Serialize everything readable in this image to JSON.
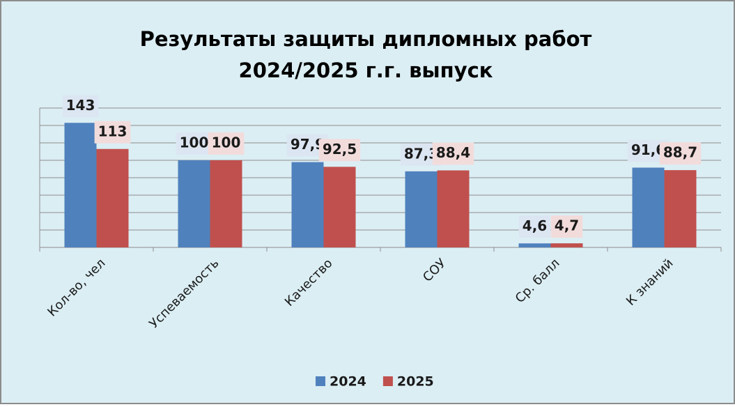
{
  "chart_data": {
    "type": "bar",
    "title": "Результаты защиты дипломных работ",
    "subtitle": "2024/2025 г.г. выпуск",
    "categories": [
      "Кол-во, чел",
      "Успеваемость",
      "Качество",
      "СОУ",
      "Ср. балл",
      "К знаний"
    ],
    "series": [
      {
        "name": "2024",
        "color": "#4f81bd",
        "values": [
          143,
          100,
          97.9,
          87.3,
          4.6,
          91.6
        ],
        "value_labels": [
          "143",
          "100",
          "97,9",
          "87,3",
          "4,6",
          "91,6"
        ]
      },
      {
        "name": "2025",
        "color": "#c0504d",
        "values": [
          113,
          100,
          92.5,
          88.4,
          4.7,
          88.7
        ],
        "value_labels": [
          "113",
          "100",
          "92,5",
          "88,4",
          "4,7",
          "88,7"
        ]
      }
    ],
    "ylim": [
      0,
      160
    ],
    "yticks": [
      0,
      20,
      40,
      60,
      80,
      100,
      120,
      140,
      160
    ],
    "grid": true,
    "legend": "bottom"
  }
}
